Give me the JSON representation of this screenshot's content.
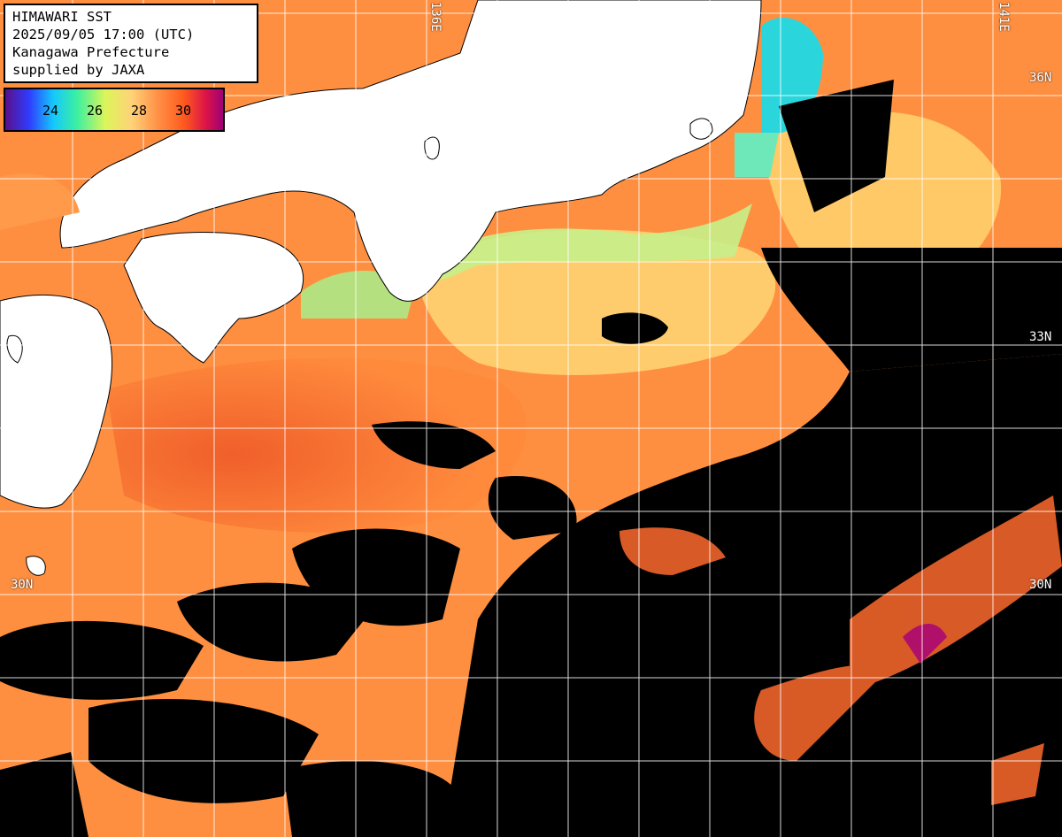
{
  "title": {
    "line1": "HIMAWARI SST",
    "line2": "2025/09/05 17:00 (UTC)",
    "line3": "Kanagawa Prefecture",
    "line4": "supplied by JAXA"
  },
  "legend": {
    "ticks": [
      "24",
      "26",
      "28",
      "30"
    ],
    "colors": [
      "#5a0f8a",
      "#2f3cff",
      "#14c8ff",
      "#3cf0a0",
      "#dcf55a",
      "#ffd278",
      "#ff9146",
      "#ff5a1e",
      "#dc1446",
      "#a00078"
    ]
  },
  "grid_labels": {
    "lat_36": "36N",
    "lat_33": "33N",
    "lat_30_left": "30N",
    "lat_30_right": "30N",
    "lon_136": "136E",
    "lon_141": "141E"
  },
  "colors": {
    "land": "#ffffff",
    "cloud": "#000000",
    "sst_warm": "#ff8c3c",
    "sst_hot": "#f05a2a",
    "sst_cool": "#ffd278",
    "sst_coastal": "#b8f08c",
    "sst_cold": "#14c8ff"
  }
}
